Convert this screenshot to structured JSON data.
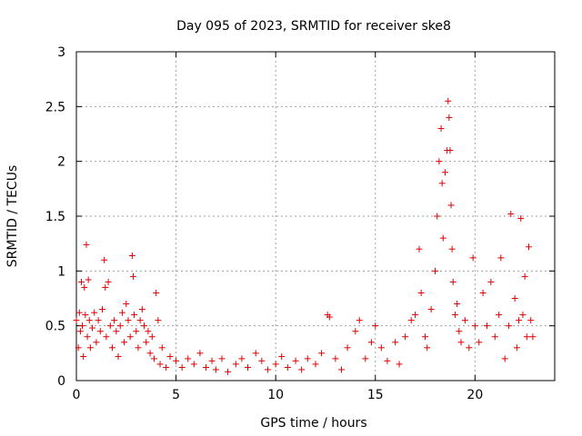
{
  "chart_data": {
    "type": "scatter",
    "title": "Day 095 of 2023, SRMTID for receiver ske8",
    "xlabel": "GPS time / hours",
    "ylabel": "SRMTID / TECUs",
    "xlim": [
      0,
      24
    ],
    "ylim": [
      0,
      3
    ],
    "xticks": [
      0,
      5,
      10,
      15,
      20
    ],
    "yticks": [
      0,
      0.5,
      1,
      1.5,
      2,
      2.5,
      3
    ],
    "xtick_labels": [
      "0",
      "5",
      "10",
      "15",
      "20"
    ],
    "ytick_labels": [
      "0",
      "0.5",
      "1",
      "1.5",
      "2",
      "2.5",
      "3"
    ],
    "grid": true,
    "marker": "+",
    "color": "#e00000",
    "series": [
      {
        "name": "SRMTID ske8",
        "points": [
          [
            0.0,
            0.55
          ],
          [
            0.1,
            0.3
          ],
          [
            0.15,
            0.62
          ],
          [
            0.2,
            0.45
          ],
          [
            0.25,
            0.9
          ],
          [
            0.3,
            0.5
          ],
          [
            0.35,
            0.22
          ],
          [
            0.4,
            0.85
          ],
          [
            0.45,
            0.6
          ],
          [
            0.5,
            1.24
          ],
          [
            0.55,
            0.4
          ],
          [
            0.6,
            0.92
          ],
          [
            0.65,
            0.55
          ],
          [
            0.7,
            0.3
          ],
          [
            0.8,
            0.48
          ],
          [
            0.9,
            0.62
          ],
          [
            1.0,
            0.35
          ],
          [
            1.1,
            0.55
          ],
          [
            1.2,
            0.45
          ],
          [
            1.3,
            0.65
          ],
          [
            1.4,
            1.1
          ],
          [
            1.45,
            0.85
          ],
          [
            1.5,
            0.4
          ],
          [
            1.6,
            0.9
          ],
          [
            1.7,
            0.5
          ],
          [
            1.8,
            0.3
          ],
          [
            1.9,
            0.55
          ],
          [
            2.0,
            0.45
          ],
          [
            2.1,
            0.22
          ],
          [
            2.2,
            0.5
          ],
          [
            2.3,
            0.62
          ],
          [
            2.4,
            0.35
          ],
          [
            2.5,
            0.7
          ],
          [
            2.6,
            0.55
          ],
          [
            2.7,
            0.4
          ],
          [
            2.8,
            1.14
          ],
          [
            2.85,
            0.95
          ],
          [
            2.9,
            0.6
          ],
          [
            3.0,
            0.45
          ],
          [
            3.1,
            0.3
          ],
          [
            3.2,
            0.55
          ],
          [
            3.3,
            0.65
          ],
          [
            3.4,
            0.5
          ],
          [
            3.5,
            0.35
          ],
          [
            3.6,
            0.45
          ],
          [
            3.7,
            0.25
          ],
          [
            3.8,
            0.4
          ],
          [
            3.9,
            0.2
          ],
          [
            4.0,
            0.8
          ],
          [
            4.1,
            0.55
          ],
          [
            4.2,
            0.15
          ],
          [
            4.3,
            0.3
          ],
          [
            4.5,
            0.12
          ],
          [
            4.7,
            0.22
          ],
          [
            5.0,
            0.18
          ],
          [
            5.3,
            0.12
          ],
          [
            5.6,
            0.2
          ],
          [
            5.9,
            0.15
          ],
          [
            6.2,
            0.25
          ],
          [
            6.5,
            0.12
          ],
          [
            6.8,
            0.18
          ],
          [
            7.0,
            0.1
          ],
          [
            7.3,
            0.2
          ],
          [
            7.6,
            0.08
          ],
          [
            8.0,
            0.15
          ],
          [
            8.3,
            0.2
          ],
          [
            8.6,
            0.12
          ],
          [
            9.0,
            0.25
          ],
          [
            9.3,
            0.18
          ],
          [
            9.6,
            0.1
          ],
          [
            10.0,
            0.15
          ],
          [
            10.3,
            0.22
          ],
          [
            10.6,
            0.12
          ],
          [
            11.0,
            0.18
          ],
          [
            11.3,
            0.1
          ],
          [
            11.6,
            0.2
          ],
          [
            12.0,
            0.15
          ],
          [
            12.3,
            0.25
          ],
          [
            12.6,
            0.6
          ],
          [
            12.7,
            0.58
          ],
          [
            13.0,
            0.2
          ],
          [
            13.3,
            0.1
          ],
          [
            13.6,
            0.3
          ],
          [
            14.0,
            0.45
          ],
          [
            14.2,
            0.55
          ],
          [
            14.5,
            0.2
          ],
          [
            14.8,
            0.35
          ],
          [
            15.0,
            0.5
          ],
          [
            15.3,
            0.3
          ],
          [
            15.6,
            0.18
          ],
          [
            16.0,
            0.35
          ],
          [
            16.2,
            0.15
          ],
          [
            16.5,
            0.4
          ],
          [
            16.8,
            0.55
          ],
          [
            17.0,
            0.6
          ],
          [
            17.2,
            1.2
          ],
          [
            17.3,
            0.8
          ],
          [
            17.5,
            0.4
          ],
          [
            17.6,
            0.3
          ],
          [
            17.8,
            0.65
          ],
          [
            18.0,
            1.0
          ],
          [
            18.1,
            1.5
          ],
          [
            18.2,
            2.0
          ],
          [
            18.3,
            2.3
          ],
          [
            18.35,
            1.8
          ],
          [
            18.4,
            1.3
          ],
          [
            18.5,
            1.9
          ],
          [
            18.6,
            2.1
          ],
          [
            18.65,
            2.55
          ],
          [
            18.7,
            2.4
          ],
          [
            18.75,
            2.1
          ],
          [
            18.8,
            1.6
          ],
          [
            18.85,
            1.2
          ],
          [
            18.9,
            0.9
          ],
          [
            19.0,
            0.6
          ],
          [
            19.1,
            0.7
          ],
          [
            19.2,
            0.45
          ],
          [
            19.3,
            0.35
          ],
          [
            19.5,
            0.55
          ],
          [
            19.7,
            0.3
          ],
          [
            19.9,
            1.12
          ],
          [
            20.0,
            0.5
          ],
          [
            20.2,
            0.35
          ],
          [
            20.4,
            0.8
          ],
          [
            20.6,
            0.5
          ],
          [
            20.8,
            0.9
          ],
          [
            21.0,
            0.4
          ],
          [
            21.2,
            0.6
          ],
          [
            21.3,
            1.12
          ],
          [
            21.5,
            0.2
          ],
          [
            21.7,
            0.5
          ],
          [
            21.8,
            1.52
          ],
          [
            22.0,
            0.75
          ],
          [
            22.1,
            0.3
          ],
          [
            22.2,
            0.55
          ],
          [
            22.3,
            1.48
          ],
          [
            22.4,
            0.6
          ],
          [
            22.5,
            0.95
          ],
          [
            22.6,
            0.4
          ],
          [
            22.7,
            1.22
          ],
          [
            22.8,
            0.55
          ],
          [
            22.9,
            0.4
          ]
        ]
      }
    ]
  }
}
